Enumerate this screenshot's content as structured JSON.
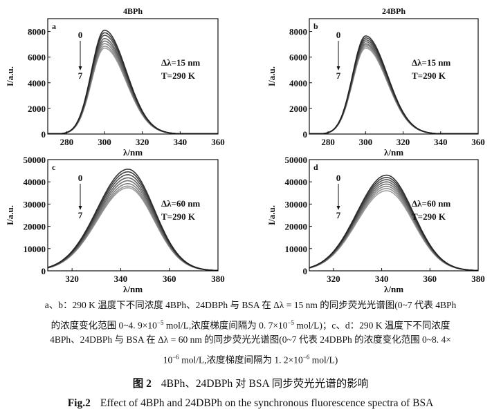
{
  "chart_data": [
    {
      "id": "a",
      "type": "line",
      "title": "4BPh",
      "panel_label": "a",
      "xlabel": "λ/nm",
      "ylabel": "I/a.u.",
      "xlim": [
        270,
        360
      ],
      "ylim": [
        0,
        9000
      ],
      "xticks": [
        280,
        300,
        320,
        340,
        360
      ],
      "yticks": [
        0,
        2000,
        4000,
        6000,
        8000
      ],
      "annotation_lines": [
        "Δλ=15 nm",
        "T=290 K"
      ],
      "arrow_start": "0",
      "arrow_end": "7",
      "peak_x": 300,
      "onset_left": 282,
      "offset_right": 330,
      "series": [
        {
          "name": "0",
          "peak": 8100
        },
        {
          "name": "1",
          "peak": 7900
        },
        {
          "name": "2",
          "peak": 7700
        },
        {
          "name": "3",
          "peak": 7450
        },
        {
          "name": "4",
          "peak": 7250
        },
        {
          "name": "5",
          "peak": 7050
        },
        {
          "name": "6",
          "peak": 6850
        },
        {
          "name": "7",
          "peak": 6700
        }
      ]
    },
    {
      "id": "b",
      "type": "line",
      "title": "24BPh",
      "panel_label": "b",
      "xlabel": "λ/nm",
      "ylabel": "I/a.u.",
      "xlim": [
        270,
        360
      ],
      "ylim": [
        0,
        9000
      ],
      "xticks": [
        280,
        300,
        320,
        340,
        360
      ],
      "yticks": [
        0,
        2000,
        4000,
        6000,
        8000
      ],
      "annotation_lines": [
        "Δλ=15 nm",
        "T=290 K"
      ],
      "arrow_start": "0",
      "arrow_end": "7",
      "peak_x": 300,
      "onset_left": 282,
      "offset_right": 330,
      "series": [
        {
          "name": "0",
          "peak": 7650
        },
        {
          "name": "1",
          "peak": 7500
        },
        {
          "name": "2",
          "peak": 7350
        },
        {
          "name": "3",
          "peak": 7200
        },
        {
          "name": "4",
          "peak": 7050
        },
        {
          "name": "5",
          "peak": 6950
        },
        {
          "name": "6",
          "peak": 6820
        },
        {
          "name": "7",
          "peak": 6700
        }
      ]
    },
    {
      "id": "c",
      "type": "line",
      "title": "",
      "panel_label": "c",
      "xlabel": "λ/nm",
      "ylabel": "I/a.u.",
      "xlim": [
        310,
        380
      ],
      "ylim": [
        0,
        50000
      ],
      "xticks": [
        320,
        340,
        360,
        380
      ],
      "yticks": [
        0,
        10000,
        20000,
        30000,
        40000,
        50000
      ],
      "annotation_lines": [
        "Δλ=60 nm",
        "T=290 K"
      ],
      "arrow_start": "0",
      "arrow_end": "7",
      "peak_x": 343,
      "onset_left": 310,
      "offset_right": 371,
      "series": [
        {
          "name": "0",
          "peak": 45700
        },
        {
          "name": "1",
          "peak": 44500
        },
        {
          "name": "2",
          "peak": 43200
        },
        {
          "name": "3",
          "peak": 41800
        },
        {
          "name": "4",
          "peak": 40500
        },
        {
          "name": "5",
          "peak": 39200
        },
        {
          "name": "6",
          "peak": 38100
        },
        {
          "name": "7",
          "peak": 37300
        }
      ]
    },
    {
      "id": "d",
      "type": "line",
      "title": "",
      "panel_label": "d",
      "xlabel": "λ/nm",
      "ylabel": "I/a.u.",
      "xlim": [
        310,
        380
      ],
      "ylim": [
        0,
        50000
      ],
      "xticks": [
        320,
        340,
        360,
        380
      ],
      "yticks": [
        0,
        10000,
        20000,
        30000,
        40000,
        50000
      ],
      "annotation_lines": [
        "Δλ=60 nm",
        "T=290 K"
      ],
      "arrow_start": "0",
      "arrow_end": "7",
      "peak_x": 342,
      "onset_left": 310,
      "offset_right": 371,
      "series": [
        {
          "name": "0",
          "peak": 43000
        },
        {
          "name": "1",
          "peak": 42000
        },
        {
          "name": "2",
          "peak": 41000
        },
        {
          "name": "3",
          "peak": 40000
        },
        {
          "name": "4",
          "peak": 39000
        },
        {
          "name": "5",
          "peak": 38000
        },
        {
          "name": "6",
          "peak": 37000
        },
        {
          "name": "7",
          "peak": 36000
        }
      ]
    }
  ],
  "caption": {
    "line1": "a、b：290 K 温度下不同浓度 4BPh、24DBPh 与 BSA 在 Δλ = 15 nm 的同步荧光光谱图(0~7 代表 4BPh",
    "line2_a": "的浓度变化范围 0~4. 9×10",
    "line2_exp1": "−5",
    "line2_b": " mol/L,浓度梯度间隔为 0. 7×10",
    "line2_exp2": "−5",
    "line2_c": " mol/L)；c、d：290 K 温度下不同浓度",
    "line3": "4BPh、24DBPh 与 BSA 在 Δλ = 60 nm 的同步荧光光谱图(0~7 代表 24DBPh 的浓度变化范围 0~8. 4×",
    "line4_a": "10",
    "line4_exp1": "−6",
    "line4_b": " mol/L,浓度梯度间隔为 1. 2×10",
    "line4_exp2": "−6",
    "line4_c": " mol/L)"
  },
  "figure_title_cn": {
    "number": "图 2",
    "text": "4BPh、24DBPh 对 BSA 同步荧光光谱的影响"
  },
  "figure_title_en": {
    "number": "Fig.2",
    "text": "Effect of 4BPh and 24DBPh on the synchronous fluorescence spectra of BSA"
  }
}
